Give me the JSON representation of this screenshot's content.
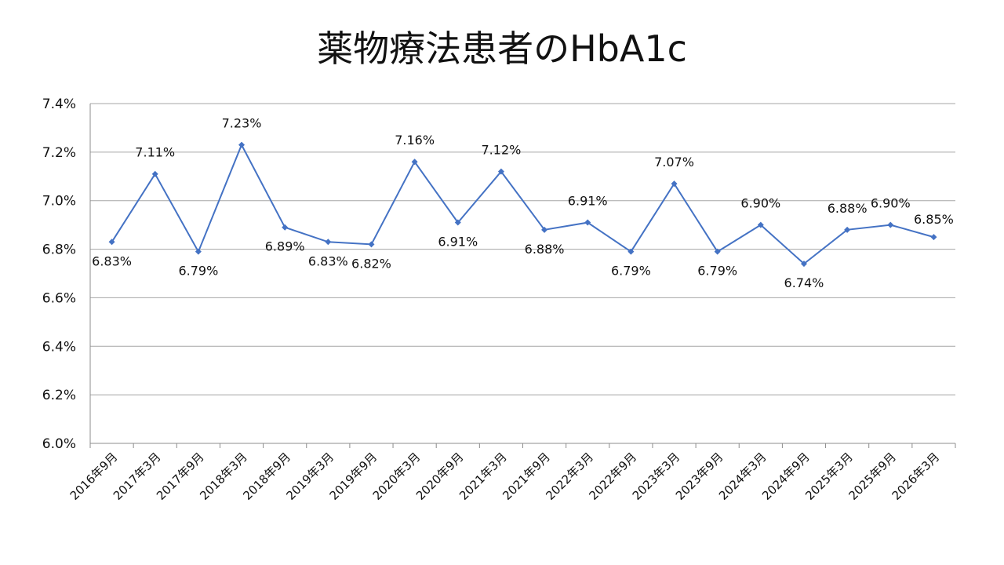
{
  "chart_data": {
    "type": "line",
    "title": "薬物療法患者のHbA1c",
    "categories": [
      "2016年9月",
      "2017年3月",
      "2017年9月",
      "2018年3月",
      "2018年9月",
      "2019年3月",
      "2019年9月",
      "2020年3月",
      "2020年9月",
      "2021年3月",
      "2021年9月",
      "2022年3月",
      "2022年9月",
      "2023年3月",
      "2023年9月",
      "2024年3月",
      "2024年9月",
      "2025年3月",
      "2025年9月",
      "2026年3月"
    ],
    "series": [
      {
        "values": [
          6.83,
          7.11,
          6.79,
          7.23,
          6.89,
          6.83,
          6.82,
          7.16,
          6.91,
          7.12,
          6.88,
          6.91,
          6.79,
          7.07,
          6.79,
          6.9,
          6.74,
          6.88,
          6.9,
          6.85
        ],
        "data_labels": [
          "6.83%",
          "7.11%",
          "6.79%",
          "7.23%",
          "6.89%",
          "6.83%",
          "6.82%",
          "7.16%",
          "6.91%",
          "7.12%",
          "6.88%",
          "6.91%",
          "6.79%",
          "7.07%",
          "6.79%",
          "6.90%",
          "6.74%",
          "6.88%",
          "6.90%",
          "6.85%"
        ]
      }
    ],
    "y_ticks": [
      "6.0%",
      "6.2%",
      "6.4%",
      "6.6%",
      "6.8%",
      "7.0%",
      "7.2%",
      "7.4%"
    ],
    "ylim": [
      6.0,
      7.4
    ],
    "grid": true,
    "legend": "none",
    "line_color": "#4472C4",
    "grid_color": "#A6A6A6"
  }
}
